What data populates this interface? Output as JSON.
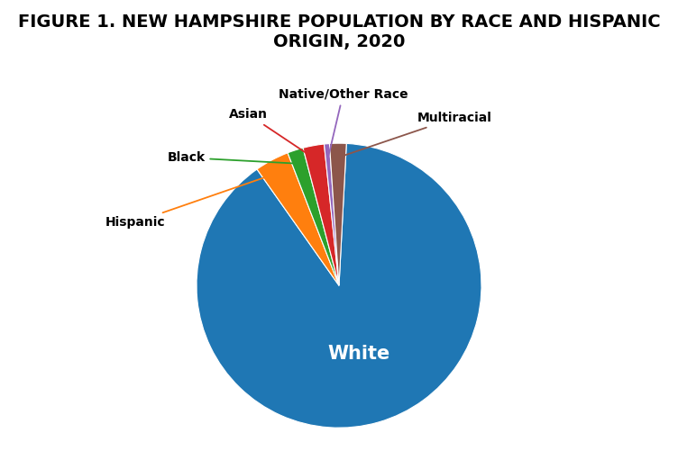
{
  "chart_data": {
    "type": "pie",
    "title": "FIGURE 1. NEW HAMPSHIRE POPULATION BY RACE AND HISPANIC ORIGIN, 2020",
    "categories": [
      "White",
      "Hispanic",
      "Black",
      "Asian",
      "Native/Other Race",
      "Multiracial"
    ],
    "values": [
      89.4,
      3.9,
      1.8,
      2.4,
      0.6,
      1.9
    ]
  }
}
